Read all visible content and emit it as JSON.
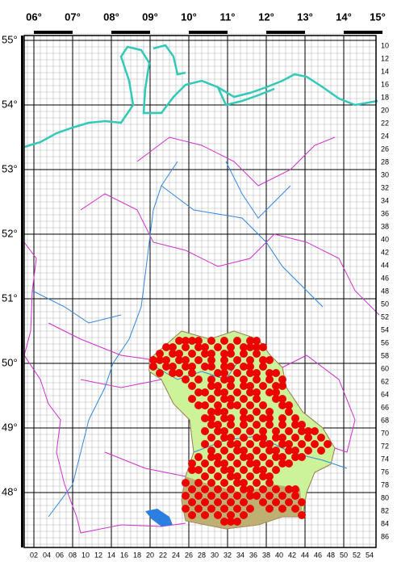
{
  "longitudes": [
    "06°",
    "07°",
    "08°",
    "09°",
    "10°",
    "11°",
    "12°",
    "13°",
    "14°",
    "15°"
  ],
  "latitudes": [
    "55°",
    "54°",
    "53°",
    "52°",
    "51°",
    "50°",
    "49°",
    "48°"
  ],
  "row_labels": [
    "10",
    "12",
    "14",
    "16",
    "18",
    "20",
    "22",
    "24",
    "26",
    "28",
    "30",
    "32",
    "34",
    "36",
    "38",
    "40",
    "42",
    "44",
    "46",
    "48",
    "50",
    "52",
    "54",
    "56",
    "58",
    "60",
    "62",
    "64",
    "66",
    "68",
    "70",
    "72",
    "74",
    "76",
    "78",
    "80",
    "82",
    "84",
    "86"
  ],
  "column_labels": [
    "02",
    "04",
    "06",
    "08",
    "10",
    "12",
    "14",
    "16",
    "18",
    "20",
    "22",
    "24",
    "26",
    "28",
    "30",
    "32",
    "34",
    "36",
    "38",
    "40",
    "42",
    "44",
    "46",
    "48",
    "50",
    "52",
    "54"
  ],
  "occurrences": [
    {
      "row": 56,
      "cols": [
        24,
        25,
        26,
        27,
        29,
        31,
        33,
        35,
        36
      ]
    },
    {
      "row": 57,
      "cols": [
        22,
        23,
        25,
        27,
        28,
        30,
        32,
        34,
        35,
        36,
        37
      ]
    },
    {
      "row": 58,
      "cols": [
        21,
        23,
        24,
        26,
        28,
        29,
        31,
        32,
        34,
        36
      ]
    },
    {
      "row": 59,
      "cols": [
        20,
        21,
        22,
        24,
        25,
        27,
        29,
        31,
        33,
        35,
        37,
        38
      ]
    },
    {
      "row": 60,
      "cols": [
        20,
        22,
        23,
        25,
        26,
        28,
        29,
        31,
        32,
        34,
        35,
        37
      ]
    },
    {
      "row": 61,
      "cols": [
        21,
        23,
        24,
        26,
        30,
        31,
        33,
        35,
        36,
        38,
        39
      ]
    },
    {
      "row": 62,
      "cols": [
        25,
        27,
        29,
        31,
        32,
        34,
        36,
        38,
        40
      ]
    },
    {
      "row": 63,
      "cols": [
        26,
        29,
        30,
        32,
        34,
        35,
        37,
        39,
        40
      ]
    },
    {
      "row": 64,
      "cols": [
        27,
        28,
        30,
        31,
        33,
        35,
        36,
        38,
        39
      ]
    },
    {
      "row": 65,
      "cols": [
        26,
        29,
        31,
        32,
        34,
        36,
        39,
        40
      ]
    },
    {
      "row": 66,
      "cols": [
        27,
        28,
        30,
        32,
        33,
        35,
        37,
        40,
        41
      ]
    },
    {
      "row": 67,
      "cols": [
        29,
        30,
        31,
        34,
        36,
        38,
        41
      ]
    },
    {
      "row": 68,
      "cols": [
        28,
        29,
        31,
        32,
        34,
        35,
        37,
        38,
        40,
        42
      ]
    },
    {
      "row": 69,
      "cols": [
        29,
        30,
        32,
        34,
        36,
        38,
        40,
        42,
        43
      ]
    },
    {
      "row": 70,
      "cols": [
        28,
        30,
        31,
        33,
        35,
        37,
        39,
        41,
        43,
        44,
        45
      ]
    },
    {
      "row": 71,
      "cols": [
        29,
        31,
        32,
        34,
        36,
        37,
        39,
        40,
        42,
        44,
        46
      ]
    },
    {
      "row": 72,
      "cols": [
        28,
        30,
        32,
        33,
        35,
        37,
        38,
        40,
        41,
        43,
        45,
        47
      ]
    },
    {
      "row": 73,
      "cols": [
        29,
        31,
        33,
        34,
        36,
        38,
        39,
        41,
        42,
        44,
        46
      ]
    },
    {
      "row": 74,
      "cols": [
        27,
        29,
        30,
        32,
        34,
        35,
        37,
        39,
        40,
        42,
        43
      ]
    },
    {
      "row": 75,
      "cols": [
        26,
        28,
        30,
        31,
        33,
        35,
        36,
        38,
        40,
        41
      ]
    },
    {
      "row": 76,
      "cols": [
        26,
        27,
        29,
        31,
        32,
        34,
        36,
        37,
        39
      ]
    },
    {
      "row": 77,
      "cols": [
        28,
        30,
        32,
        33,
        35,
        37,
        38
      ]
    },
    {
      "row": 78,
      "cols": [
        25,
        27,
        29,
        31,
        33,
        34,
        36,
        38
      ]
    },
    {
      "row": 79,
      "cols": [
        26,
        28,
        30,
        32,
        34,
        35,
        37,
        39,
        41,
        42
      ]
    },
    {
      "row": 80,
      "cols": [
        25,
        27,
        29,
        31,
        33,
        35,
        36,
        38,
        40,
        42
      ]
    },
    {
      "row": 81,
      "cols": [
        26,
        28,
        30,
        32,
        34,
        37,
        39,
        41,
        43
      ]
    },
    {
      "row": 82,
      "cols": [
        25,
        27,
        29,
        31,
        33,
        35,
        38,
        40,
        42
      ]
    },
    {
      "row": 83,
      "cols": [
        26,
        28,
        30,
        32,
        34,
        43
      ]
    },
    {
      "row": 84,
      "cols": [
        31,
        32,
        33
      ]
    }
  ]
}
